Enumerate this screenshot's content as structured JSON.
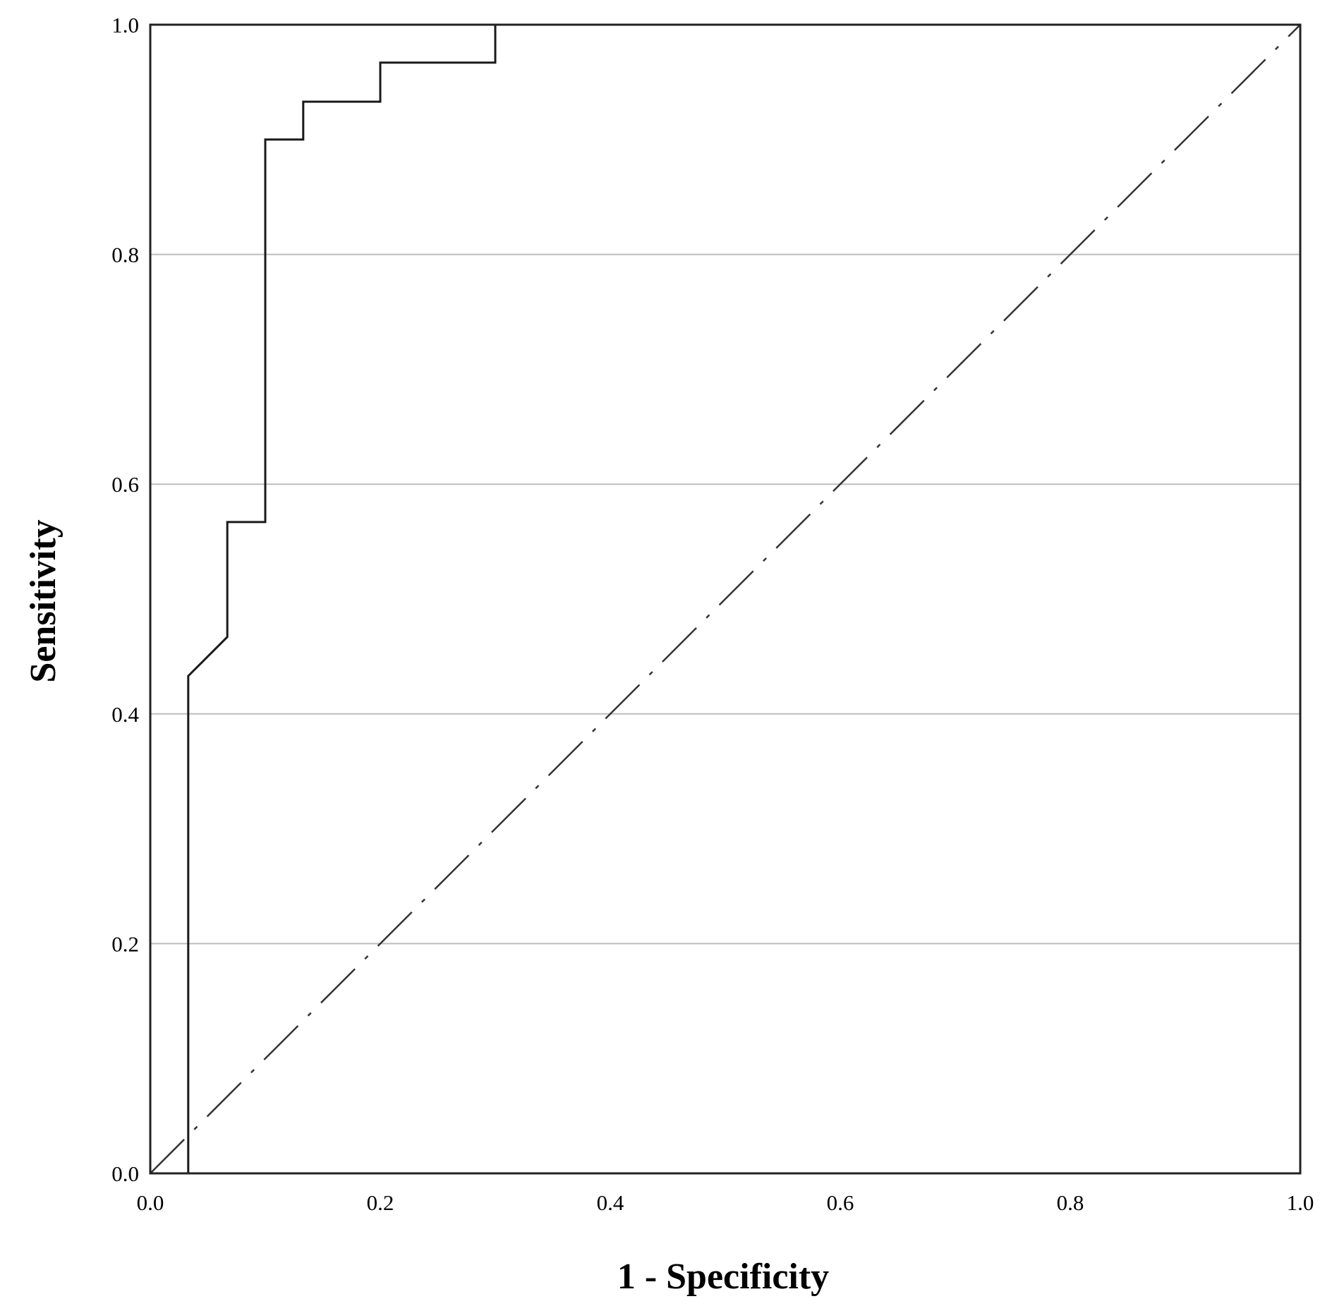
{
  "chart_data": {
    "type": "line",
    "title": "",
    "xlabel": "1 - Specificity",
    "ylabel": "Sensitivity",
    "xlim": [
      0.0,
      1.0
    ],
    "ylim": [
      0.0,
      1.0
    ],
    "x_ticks": [
      "0.0",
      "0.2",
      "0.4",
      "0.6",
      "0.8",
      "1.0"
    ],
    "y_ticks": [
      "0.0",
      "0.2",
      "0.4",
      "0.6",
      "0.8",
      "1.0"
    ],
    "grid": "horizontal",
    "legend": "none",
    "series": [
      {
        "style": "solid",
        "color": "#1a1a1a",
        "points": [
          [
            0.0,
            0.0
          ],
          [
            0.033,
            0.0
          ],
          [
            0.033,
            0.433
          ],
          [
            0.067,
            0.467
          ],
          [
            0.067,
            0.567
          ],
          [
            0.1,
            0.567
          ],
          [
            0.1,
            0.9
          ],
          [
            0.133,
            0.9
          ],
          [
            0.133,
            0.933
          ],
          [
            0.2,
            0.933
          ],
          [
            0.2,
            0.967
          ],
          [
            0.3,
            0.967
          ],
          [
            0.3,
            1.0
          ],
          [
            1.0,
            1.0
          ]
        ]
      },
      {
        "style": "dash-dot",
        "color": "#333333",
        "points": [
          [
            0.0,
            0.0
          ],
          [
            1.0,
            1.0
          ]
        ]
      }
    ]
  },
  "colors": {
    "gridline": "#bdbdbd",
    "frame": "#222222"
  }
}
